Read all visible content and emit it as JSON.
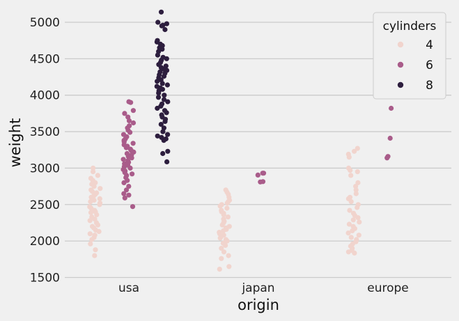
{
  "chart_data": {
    "type": "scatter",
    "subtype": "strip",
    "title": "",
    "xlabel": "origin",
    "ylabel": "weight",
    "categories": [
      "usa",
      "japan",
      "europe"
    ],
    "ylim": [
      1390,
      5210
    ],
    "yticks": [
      1500,
      2000,
      2500,
      3000,
      3500,
      4000,
      4500,
      5000
    ],
    "grid": true,
    "legend": {
      "title": "cylinders",
      "position": "top-right"
    },
    "series": [
      {
        "name": "4",
        "color": "#f1d4cd",
        "points": {
          "usa": [
            1800,
            1880,
            1960,
            2020,
            2050,
            2080,
            2100,
            2130,
            2150,
            2180,
            2200,
            2220,
            2250,
            2280,
            2300,
            2330,
            2360,
            2390,
            2400,
            2420,
            2450,
            2470,
            2500,
            2520,
            2540,
            2560,
            2580,
            2600,
            2620,
            2640,
            2660,
            2680,
            2700,
            2720,
            2750,
            2780,
            2800,
            2830,
            2860,
            2900,
            2950,
            3000
          ],
          "japan": [
            1613,
            1650,
            1760,
            1800,
            1850,
            1900,
            1940,
            1970,
            2000,
            2020,
            2040,
            2060,
            2080,
            2100,
            2120,
            2140,
            2160,
            2180,
            2200,
            2220,
            2250,
            2270,
            2300,
            2330,
            2360,
            2380,
            2400,
            2420,
            2450,
            2480,
            2500,
            2520,
            2540,
            2560,
            2600,
            2640,
            2670,
            2700
          ],
          "europe": [
            1835,
            1850,
            1870,
            1900,
            1930,
            1960,
            1990,
            2020,
            2050,
            2080,
            2110,
            2140,
            2170,
            2200,
            2230,
            2260,
            2290,
            2320,
            2350,
            2380,
            2420,
            2460,
            2500,
            2540,
            2580,
            2600,
            2650,
            2700,
            2750,
            2800,
            2900,
            2950,
            2970,
            3000,
            3150,
            3190,
            3230,
            3270
          ]
        }
      },
      {
        "name": "6",
        "color": "#a95c8a",
        "points": {
          "usa": [
            2472,
            2590,
            2630,
            2650,
            2700,
            2750,
            2800,
            2830,
            2870,
            2900,
            2920,
            2940,
            2960,
            2980,
            3000,
            3020,
            3040,
            3060,
            3080,
            3100,
            3120,
            3140,
            3160,
            3180,
            3200,
            3220,
            3240,
            3260,
            3280,
            3300,
            3320,
            3340,
            3360,
            3380,
            3400,
            3430,
            3460,
            3490,
            3520,
            3550,
            3580,
            3620,
            3650,
            3700,
            3750,
            3790,
            3900,
            3910
          ],
          "japan": [
            2815,
            2810,
            2905,
            2930,
            2930
          ],
          "europe": [
            3140,
            3160,
            3410,
            3820
          ]
        }
      },
      {
        "name": "8",
        "color": "#2d1e3e",
        "points": {
          "usa": [
            3086,
            3200,
            3230,
            3380,
            3400,
            3420,
            3440,
            3460,
            3500,
            3550,
            3600,
            3640,
            3670,
            3700,
            3730,
            3760,
            3790,
            3820,
            3850,
            3880,
            3910,
            3940,
            3970,
            4000,
            4030,
            4060,
            4080,
            4100,
            4120,
            4140,
            4160,
            4190,
            4210,
            4240,
            4260,
            4280,
            4300,
            4320,
            4340,
            4360,
            4380,
            4400,
            4420,
            4450,
            4480,
            4500,
            4520,
            4550,
            4600,
            4630,
            4650,
            4660,
            4680,
            4700,
            4730,
            4750,
            4900,
            4950,
            4960,
            4980,
            5000,
            5140
          ]
        }
      }
    ]
  }
}
